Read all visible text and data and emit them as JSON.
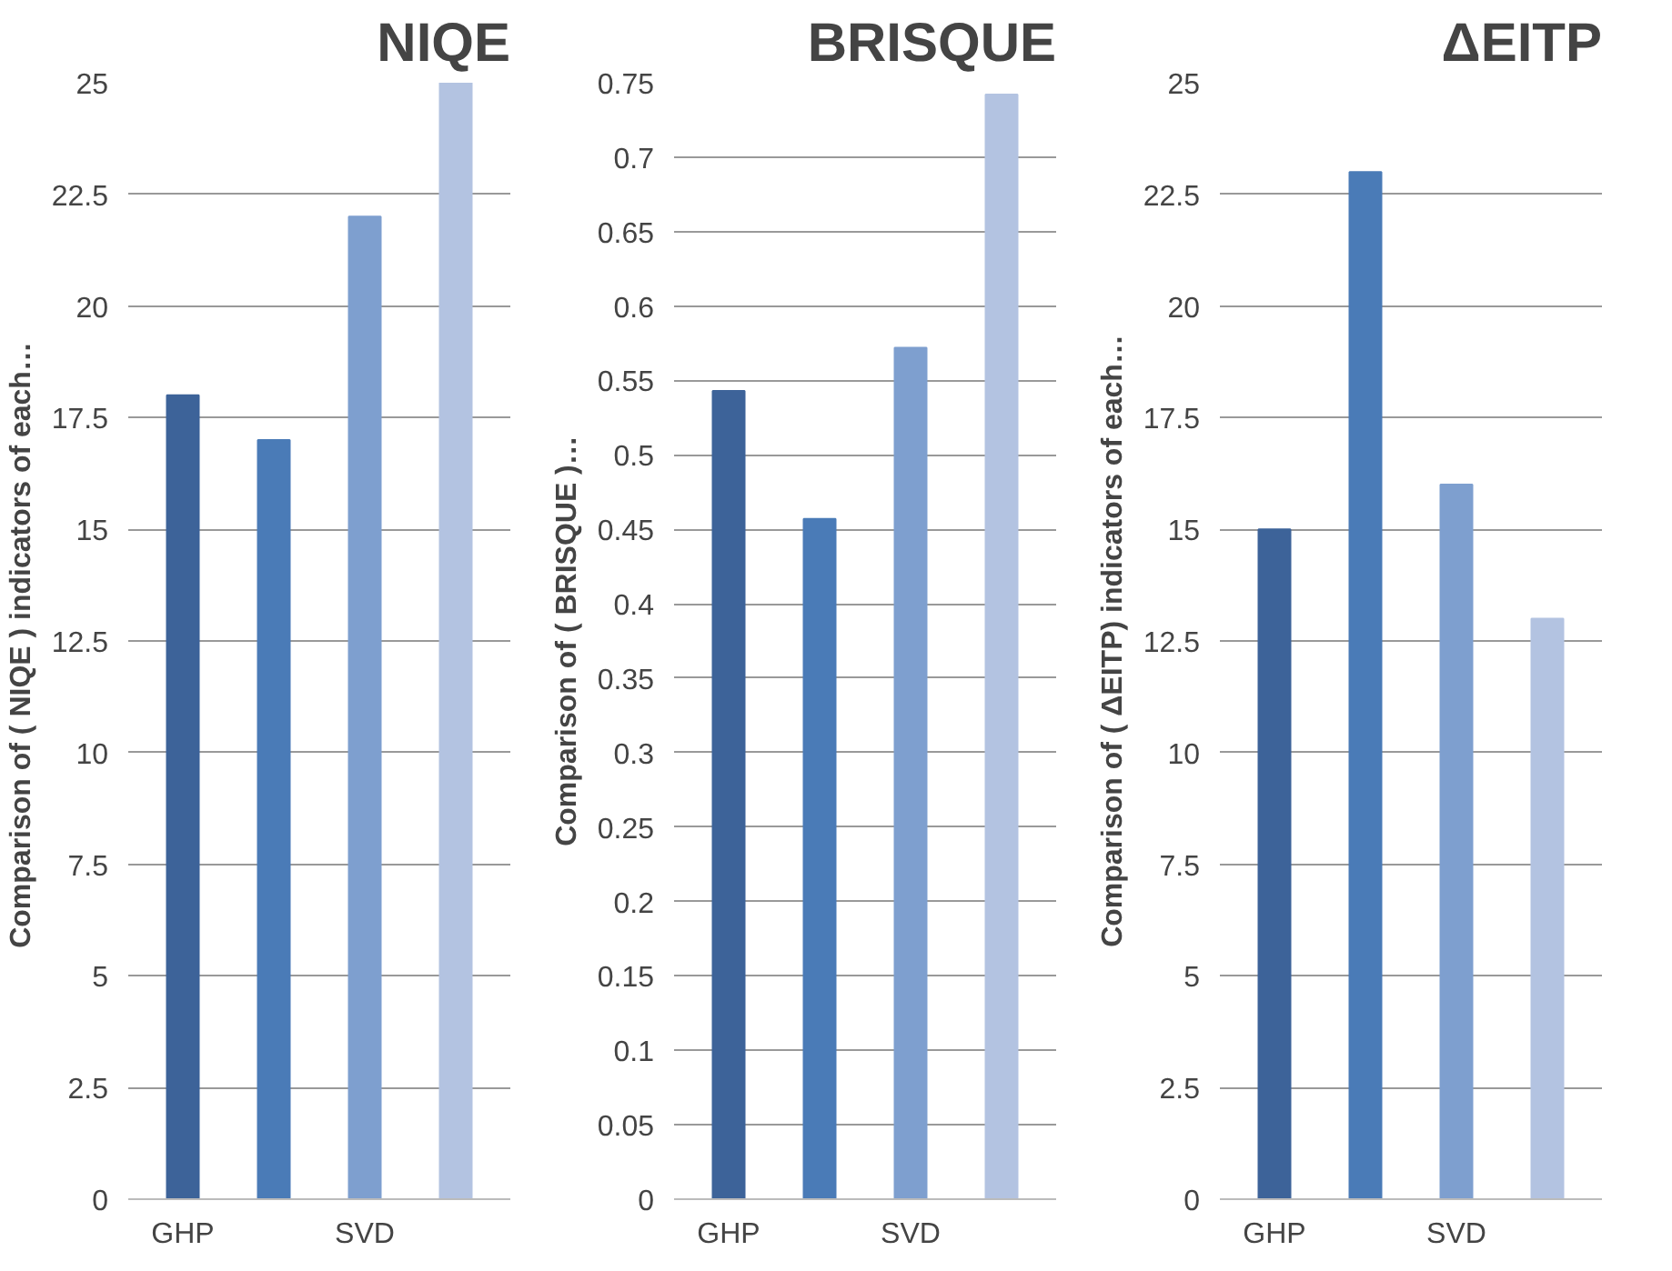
{
  "chart_data": [
    {
      "type": "bar",
      "title": "NIQE",
      "ylabel": "Comparison of ( NIQE )  indicators of each…",
      "categories": [
        "GHP",
        null,
        "SVD",
        null
      ],
      "values": [
        18,
        17,
        22,
        25
      ],
      "colors": [
        "#3d6399",
        "#4a7bb7",
        "#7e9fcf",
        "#b3c3e1"
      ],
      "ylim": [
        0,
        25
      ],
      "yticks": [
        0,
        2.5,
        5,
        7.5,
        10,
        12.5,
        15,
        17.5,
        20,
        22.5,
        25
      ],
      "grid": "y"
    },
    {
      "type": "bar",
      "title": "BRISQUE",
      "ylabel": "Comparison of ( BRISQUE )…",
      "categories": [
        "GHP",
        null,
        "SVD",
        null
      ],
      "values": [
        0.543,
        0.457,
        0.572,
        0.742
      ],
      "colors": [
        "#3d6399",
        "#4a7bb7",
        "#7e9fcf",
        "#b3c3e1"
      ],
      "ylim": [
        0,
        0.75
      ],
      "yticks": [
        0,
        0.05,
        0.1,
        0.15,
        0.2,
        0.25,
        0.3,
        0.35,
        0.4,
        0.45,
        0.5,
        0.55,
        0.6,
        0.65,
        0.7,
        0.75
      ],
      "grid": "y"
    },
    {
      "type": "bar",
      "title": "ΔEITP",
      "ylabel": "Comparison of ( ΔEITP) indicators of each…",
      "categories": [
        "GHP",
        null,
        "SVD",
        null
      ],
      "values": [
        15,
        23,
        16,
        13
      ],
      "colors": [
        "#3d6399",
        "#4a7bb7",
        "#7e9fcf",
        "#b3c3e1"
      ],
      "ylim": [
        0,
        25
      ],
      "yticks": [
        0,
        2.5,
        5,
        7.5,
        10,
        12.5,
        15,
        17.5,
        20,
        22.5,
        25
      ],
      "grid": "y"
    }
  ]
}
